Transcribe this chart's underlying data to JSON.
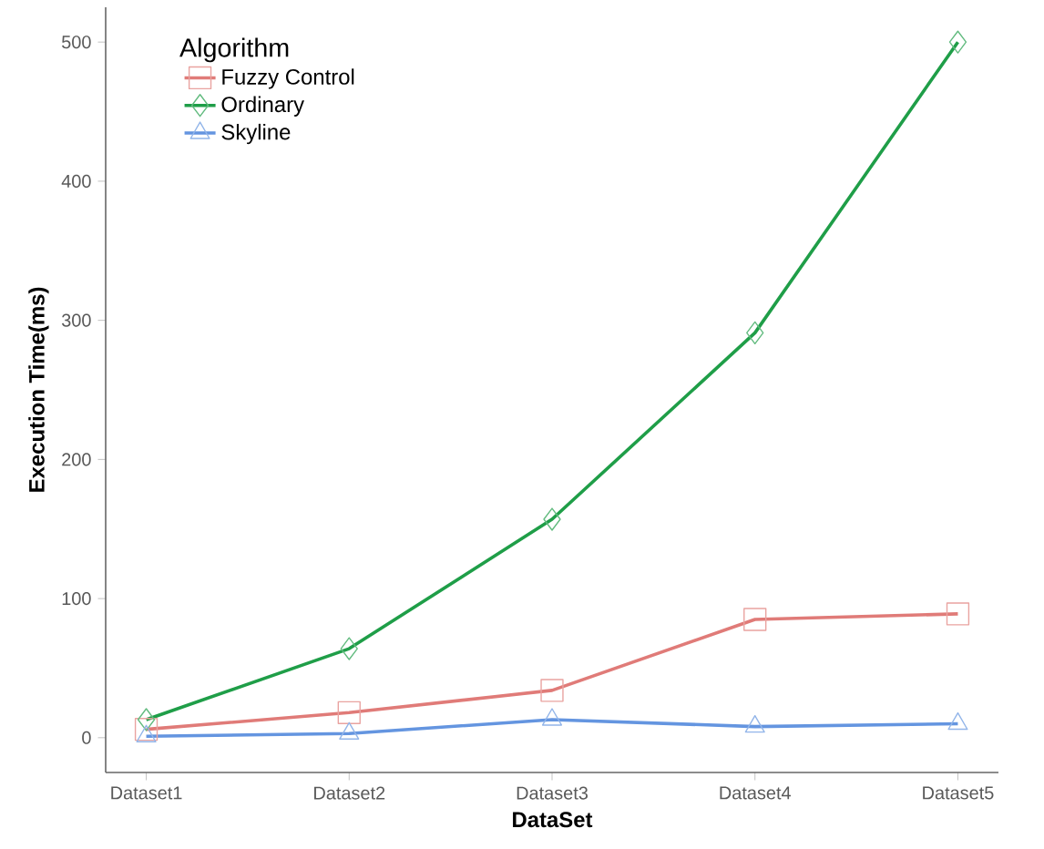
{
  "chart_data": {
    "type": "line",
    "xlabel": "DataSet",
    "ylabel": "Execution Time(ms)",
    "legend_title": "Algorithm",
    "legend": "top left",
    "grid": false,
    "categories": [
      "Dataset1",
      "Dataset2",
      "Dataset3",
      "Dataset4",
      "Dataset5"
    ],
    "ylim": [
      -25,
      525
    ],
    "yticks": [
      0,
      100,
      200,
      300,
      400,
      500
    ],
    "series": [
      {
        "name": "Fuzzy Control",
        "color": "#e07b78",
        "marker": "square",
        "values": [
          6,
          18,
          34,
          85,
          89
        ]
      },
      {
        "name": "Ordinary",
        "color": "#1f9e48",
        "marker": "diamond",
        "values": [
          13,
          64,
          157,
          291,
          500
        ]
      },
      {
        "name": "Skyline",
        "color": "#6495e0",
        "marker": "triangle",
        "values": [
          1,
          3,
          13,
          8,
          10
        ]
      }
    ]
  }
}
